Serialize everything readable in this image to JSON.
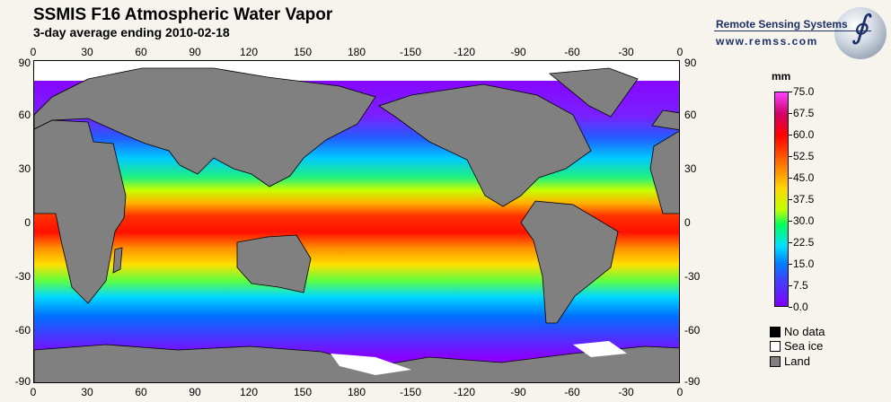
{
  "header": {
    "title": "SSMIS F16 Atmospheric Water Vapor",
    "subtitle": "3-day average ending 2010-02-18"
  },
  "logo": {
    "name": "Remote Sensing Systems",
    "url": "www.remss.com"
  },
  "axes": {
    "longitude_labels": [
      "0",
      "30",
      "60",
      "90",
      "120",
      "150",
      "180",
      "-150",
      "-120",
      "-90",
      "-60",
      "-30",
      "0"
    ],
    "latitude_labels": [
      "90",
      "60",
      "30",
      "0",
      "-30",
      "-60",
      "-90"
    ]
  },
  "colorbar": {
    "unit": "mm",
    "labels": [
      "75.0",
      "67.5",
      "60.0",
      "52.5",
      "45.0",
      "37.5",
      "30.0",
      "22.5",
      "15.0",
      "7.5",
      "0.0"
    ],
    "range": [
      0,
      75
    ]
  },
  "legend": [
    {
      "label": "No data",
      "color": "#000000"
    },
    {
      "label": "Sea ice",
      "color": "#ffffff"
    },
    {
      "label": "Land",
      "color": "#808080"
    }
  ]
}
